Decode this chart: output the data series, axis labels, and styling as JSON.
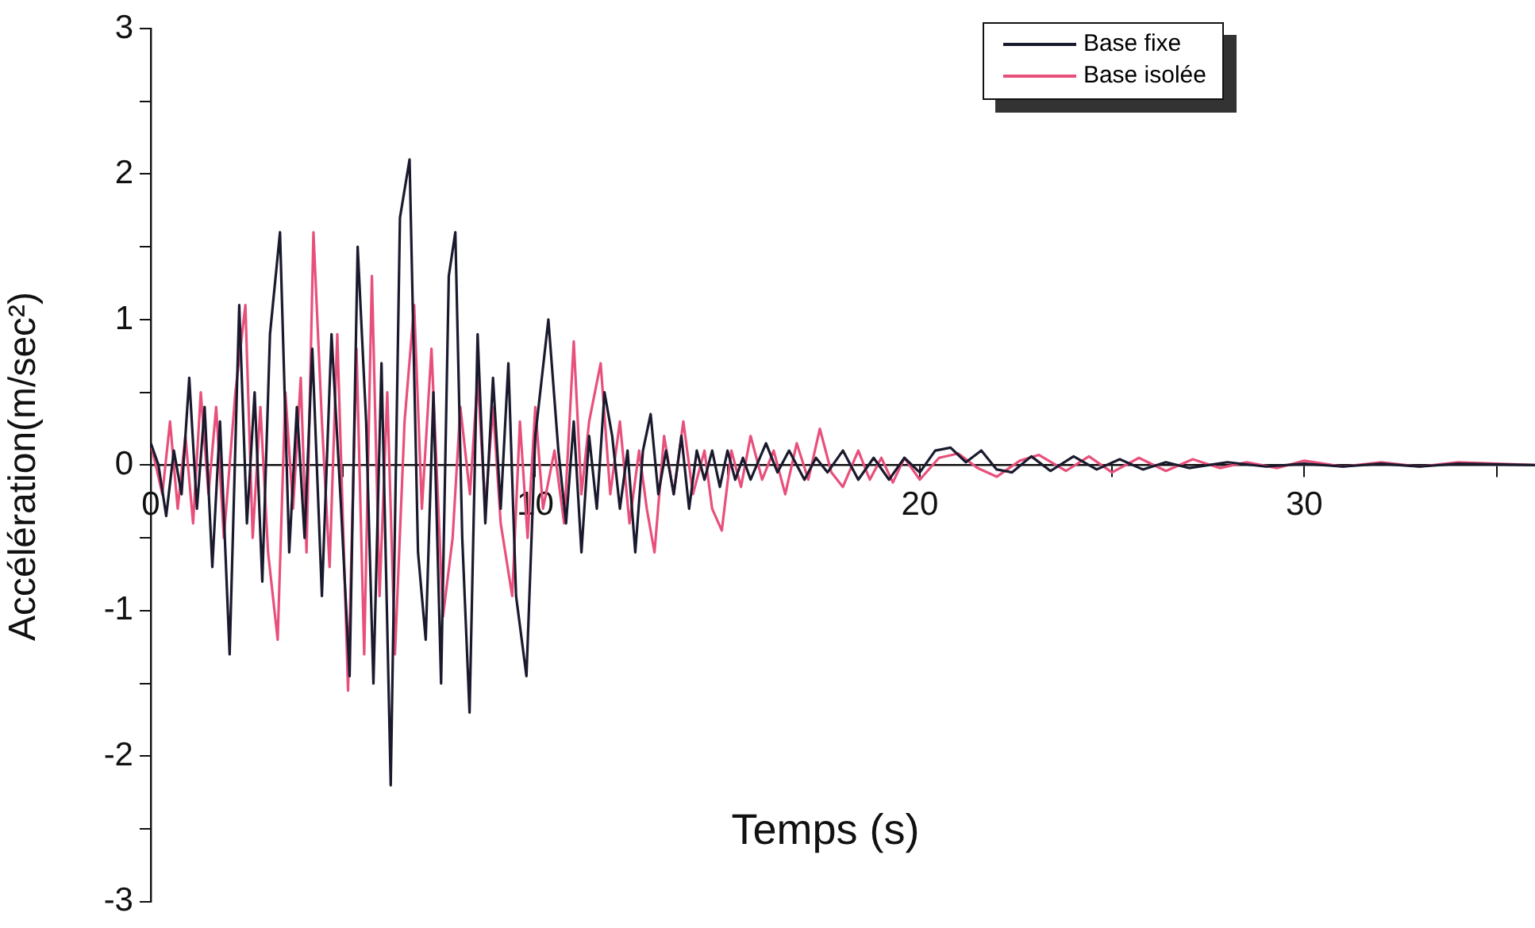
{
  "chart_data": {
    "type": "line",
    "xlabel": "Temps (s)",
    "ylabel": "Accélération(m/sec²)",
    "xlim": [
      0,
      36
    ],
    "xticks": [
      0,
      {
        "value": 5,
        "label": null
      },
      10,
      {
        "value": 15,
        "label": null
      },
      20,
      {
        "value": 25,
        "label": null
      },
      30,
      {
        "value": 35,
        "label": null
      }
    ],
    "ylim": [
      -3,
      3
    ],
    "yticks": [
      -3,
      {
        "value": -2.5,
        "label": null
      },
      -2,
      {
        "value": -1.5,
        "label": null
      },
      -1,
      {
        "value": -0.5,
        "label": null
      },
      0,
      {
        "value": 0.5,
        "label": null
      },
      1,
      {
        "value": 1.5,
        "label": null
      },
      2,
      {
        "value": 2.5,
        "label": null
      },
      3
    ],
    "grid": false,
    "legend": "top right",
    "marker": "none",
    "line_style": "solid",
    "series": [
      {
        "name": "Base fixe",
        "color": "#1a1a2e",
        "x": [
          0,
          0.2,
          0.4,
          0.6,
          0.8,
          1.0,
          1.2,
          1.4,
          1.6,
          1.8,
          2.05,
          2.3,
          2.5,
          2.7,
          2.9,
          3.1,
          3.36,
          3.6,
          3.8,
          4.0,
          4.2,
          4.45,
          4.7,
          4.95,
          5.17,
          5.38,
          5.6,
          5.79,
          6.0,
          6.24,
          6.48,
          6.73,
          6.95,
          7.15,
          7.35,
          7.55,
          7.75,
          7.92,
          8.1,
          8.29,
          8.5,
          8.7,
          8.9,
          9.1,
          9.3,
          9.5,
          9.77,
          10.0,
          10.34,
          10.6,
          10.8,
          11.0,
          11.2,
          11.4,
          11.6,
          11.8,
          12.0,
          12.2,
          12.4,
          12.6,
          12.8,
          13.0,
          13.2,
          13.4,
          13.6,
          13.8,
          14.0,
          14.2,
          14.4,
          14.6,
          14.8,
          15.0,
          15.2,
          15.4,
          15.6,
          16.0,
          16.3,
          16.6,
          17.0,
          17.3,
          17.6,
          18.0,
          18.4,
          18.8,
          19.2,
          19.6,
          20.0,
          20.4,
          20.8,
          21.2,
          21.6,
          22.0,
          22.4,
          22.9,
          23.4,
          24.0,
          24.6,
          25.2,
          25.8,
          26.4,
          27.0,
          28,
          29,
          30,
          31,
          32,
          33,
          34,
          36
        ],
        "values": [
          0.15,
          0,
          -0.35,
          0.1,
          -0.2,
          0.6,
          -0.3,
          0.4,
          -0.7,
          0.3,
          -1.3,
          1.1,
          -0.4,
          0.5,
          -0.8,
          0.9,
          1.6,
          -0.6,
          0.4,
          -0.5,
          0.8,
          -0.9,
          0.9,
          -0.3,
          -1.45,
          1.5,
          0.3,
          -1.5,
          0.7,
          -2.2,
          1.7,
          2.1,
          -0.6,
          -1.2,
          0.5,
          -1.5,
          1.3,
          1.6,
          -0.5,
          -1.7,
          0.9,
          -0.4,
          0.6,
          -0.3,
          0.7,
          -0.9,
          -1.45,
          0.2,
          1.0,
          0.1,
          -0.4,
          0.3,
          -0.6,
          0.2,
          -0.3,
          0.5,
          0.2,
          -0.3,
          0.1,
          -0.6,
          0.1,
          0.35,
          -0.2,
          0.1,
          -0.2,
          0.2,
          -0.3,
          0.1,
          -0.1,
          0.1,
          -0.15,
          0.1,
          -0.1,
          0.05,
          -0.1,
          0.15,
          -0.05,
          0.1,
          -0.1,
          0.05,
          -0.05,
          0.1,
          -0.1,
          0.05,
          -0.1,
          0.05,
          -0.05,
          0.1,
          0.12,
          0.02,
          0.1,
          -0.03,
          -0.05,
          0.06,
          -0.04,
          0.06,
          -0.03,
          0.04,
          -0.03,
          0.02,
          -0.02,
          0.02,
          -0.01,
          0.01,
          -0.01,
          0.01,
          -0.01,
          0.01,
          0
        ]
      },
      {
        "name": "Base isolée",
        "color": "#e8507c",
        "x": [
          0,
          0.3,
          0.5,
          0.7,
          0.9,
          1.1,
          1.3,
          1.5,
          1.7,
          1.9,
          2.2,
          2.46,
          2.65,
          2.85,
          3.05,
          3.3,
          3.5,
          3.7,
          3.9,
          4.05,
          4.23,
          4.45,
          4.65,
          4.85,
          5.13,
          5.35,
          5.55,
          5.75,
          5.95,
          6.15,
          6.35,
          6.6,
          6.85,
          7.05,
          7.3,
          7.6,
          7.85,
          8.05,
          8.3,
          8.5,
          8.7,
          8.9,
          9.1,
          9.4,
          9.6,
          9.8,
          10.0,
          10.2,
          10.5,
          10.75,
          11.0,
          11.2,
          11.4,
          11.7,
          11.95,
          12.2,
          12.45,
          12.7,
          12.9,
          13.1,
          13.35,
          13.6,
          13.85,
          14.1,
          14.4,
          14.6,
          14.85,
          15.1,
          15.35,
          15.6,
          15.9,
          16.2,
          16.5,
          16.8,
          17.1,
          17.4,
          17.7,
          18.0,
          18.4,
          18.7,
          19.0,
          19.3,
          19.6,
          20.0,
          20.5,
          21.0,
          21.5,
          22.0,
          22.6,
          23.1,
          23.8,
          24.4,
          25.0,
          25.7,
          26.4,
          27.1,
          27.8,
          28.5,
          29.3,
          30,
          31,
          32,
          33,
          34,
          36
        ],
        "values": [
          0.15,
          -0.2,
          0.3,
          -0.3,
          0.2,
          -0.4,
          0.5,
          -0.2,
          0.4,
          -0.5,
          0.5,
          1.1,
          -0.5,
          0.4,
          -0.6,
          -1.2,
          0.5,
          -0.3,
          0.6,
          -0.6,
          1.6,
          0.3,
          -0.7,
          0.9,
          -1.55,
          0.8,
          -1.3,
          1.3,
          -0.9,
          0.5,
          -1.3,
          0.3,
          1.1,
          -0.3,
          0.8,
          -1.04,
          -0.5,
          0.4,
          -0.2,
          0.6,
          -0.3,
          0.4,
          -0.4,
          -0.9,
          0.3,
          -0.5,
          0.4,
          -0.3,
          0.1,
          -0.4,
          0.85,
          -0.2,
          0.3,
          0.7,
          -0.2,
          0.3,
          -0.4,
          0.1,
          -0.3,
          -0.6,
          0.2,
          -0.2,
          0.3,
          -0.2,
          0.1,
          -0.3,
          -0.45,
          0.1,
          -0.15,
          0.2,
          -0.1,
          0.1,
          -0.2,
          0.15,
          -0.1,
          0.25,
          -0.05,
          -0.15,
          0.1,
          -0.1,
          0.05,
          -0.12,
          0.05,
          -0.1,
          0.05,
          0.08,
          -0.02,
          -0.08,
          0.03,
          0.07,
          -0.04,
          0.06,
          -0.05,
          0.05,
          -0.04,
          0.04,
          -0.02,
          0.02,
          -0.02,
          0.03,
          -0.01,
          0.02,
          -0.01,
          0.02,
          0
        ]
      }
    ]
  }
}
